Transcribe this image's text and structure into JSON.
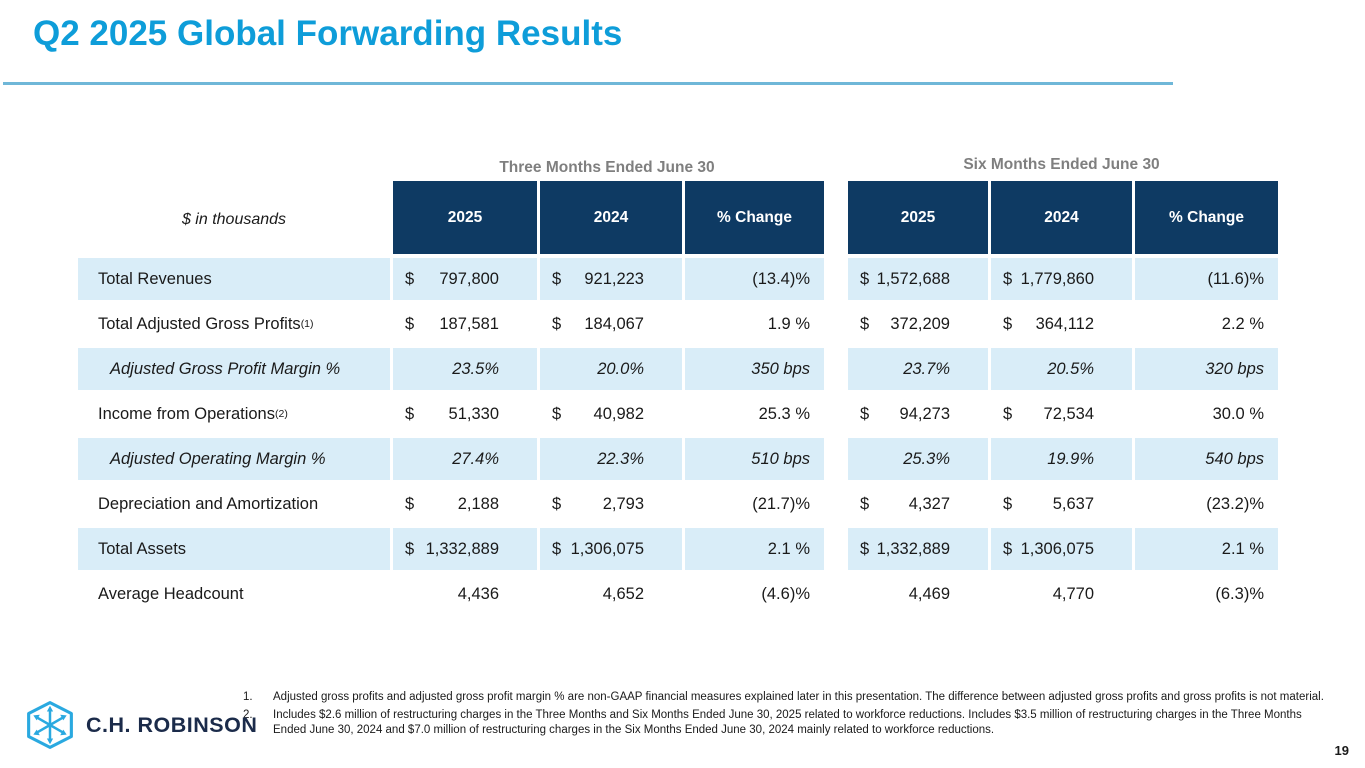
{
  "slide": {
    "title": "Q2 2025 Global Forwarding Results",
    "page_number": "19"
  },
  "colors": {
    "title_cyan": "#0e9dd9",
    "rule_blue": "#6fb7d8",
    "header_navy": "#0e3a63",
    "row_light_blue": "#d9edf8",
    "section_gray": "#7f7f7f",
    "logo_cyan": "#2aa9e0",
    "logo_navy": "#1b2b4a"
  },
  "table": {
    "units_label": "$ in thousands",
    "groups": [
      {
        "title": "Three Months Ended June 30",
        "columns": [
          "2025",
          "2024",
          "% Change"
        ]
      },
      {
        "title": "Six Months Ended June 30",
        "columns": [
          "2025",
          "2024",
          "% Change"
        ]
      }
    ],
    "rows": [
      {
        "label": "Total Revenues",
        "sup": "",
        "italic": false,
        "shaded": true,
        "cells": [
          {
            "c": "$",
            "v": "797,800"
          },
          {
            "c": "$",
            "v": "921,223"
          },
          {
            "c": "",
            "v": "(13.4)%"
          },
          {
            "c": "$",
            "v": "1,572,688"
          },
          {
            "c": "$",
            "v": "1,779,860"
          },
          {
            "c": "",
            "v": "(11.6)%"
          }
        ]
      },
      {
        "label": "Total Adjusted Gross Profits",
        "sup": "(1)",
        "italic": false,
        "shaded": false,
        "cells": [
          {
            "c": "$",
            "v": "187,581"
          },
          {
            "c": "$",
            "v": "184,067"
          },
          {
            "c": "",
            "v": "1.9 %"
          },
          {
            "c": "$",
            "v": "372,209"
          },
          {
            "c": "$",
            "v": "364,112"
          },
          {
            "c": "",
            "v": "2.2 %"
          }
        ]
      },
      {
        "label": "Adjusted Gross Profit Margin %",
        "sup": "",
        "italic": true,
        "shaded": true,
        "cells": [
          {
            "c": "",
            "v": "23.5%"
          },
          {
            "c": "",
            "v": "20.0%"
          },
          {
            "c": "",
            "v": "350 bps"
          },
          {
            "c": "",
            "v": "23.7%"
          },
          {
            "c": "",
            "v": "20.5%"
          },
          {
            "c": "",
            "v": "320 bps"
          }
        ]
      },
      {
        "label": "Income from Operations",
        "sup": "(2)",
        "italic": false,
        "shaded": false,
        "cells": [
          {
            "c": "$",
            "v": "51,330"
          },
          {
            "c": "$",
            "v": "40,982"
          },
          {
            "c": "",
            "v": "25.3 %"
          },
          {
            "c": "$",
            "v": "94,273"
          },
          {
            "c": "$",
            "v": "72,534"
          },
          {
            "c": "",
            "v": "30.0 %"
          }
        ]
      },
      {
        "label": "Adjusted Operating Margin %",
        "sup": "",
        "italic": true,
        "shaded": true,
        "cells": [
          {
            "c": "",
            "v": "27.4%"
          },
          {
            "c": "",
            "v": "22.3%"
          },
          {
            "c": "",
            "v": "510 bps"
          },
          {
            "c": "",
            "v": "25.3%"
          },
          {
            "c": "",
            "v": "19.9%"
          },
          {
            "c": "",
            "v": "540 bps"
          }
        ]
      },
      {
        "label": "Depreciation and Amortization",
        "sup": "",
        "italic": false,
        "shaded": false,
        "cells": [
          {
            "c": "$",
            "v": "2,188"
          },
          {
            "c": "$",
            "v": "2,793"
          },
          {
            "c": "",
            "v": "(21.7)%"
          },
          {
            "c": "$",
            "v": "4,327"
          },
          {
            "c": "$",
            "v": "5,637"
          },
          {
            "c": "",
            "v": "(23.2)%"
          }
        ]
      },
      {
        "label": "Total Assets",
        "sup": "",
        "italic": false,
        "shaded": true,
        "cells": [
          {
            "c": "$",
            "v": "1,332,889"
          },
          {
            "c": "$",
            "v": "1,306,075"
          },
          {
            "c": "",
            "v": "2.1 %"
          },
          {
            "c": "$",
            "v": "1,332,889"
          },
          {
            "c": "$",
            "v": "1,306,075"
          },
          {
            "c": "",
            "v": "2.1 %"
          }
        ]
      },
      {
        "label": "Average Headcount",
        "sup": "",
        "italic": false,
        "shaded": false,
        "cells": [
          {
            "c": "",
            "v": "4,436"
          },
          {
            "c": "",
            "v": "4,652"
          },
          {
            "c": "",
            "v": "(4.6)%"
          },
          {
            "c": "",
            "v": "4,469"
          },
          {
            "c": "",
            "v": "4,770"
          },
          {
            "c": "",
            "v": "(6.3)%"
          }
        ]
      }
    ]
  },
  "footnotes": [
    {
      "num": "1.",
      "text": "Adjusted gross profits and adjusted gross profit margin % are non-GAAP financial measures explained later in this presentation. The difference between adjusted gross profits and gross profits is not material."
    },
    {
      "num": "2.",
      "text": "Includes $2.6 million of restructuring charges in the Three Months and Six Months Ended June 30, 2025 related to workforce reductions. Includes $3.5 million of restructuring charges in the Three Months Ended June 30, 2024 and $7.0 million of restructuring charges in the Six Months Ended June 30, 2024 mainly related to workforce reductions."
    }
  ],
  "logo": {
    "company": "C.H. ROBINSON",
    "icon": "hexagon-arrows-icon"
  }
}
